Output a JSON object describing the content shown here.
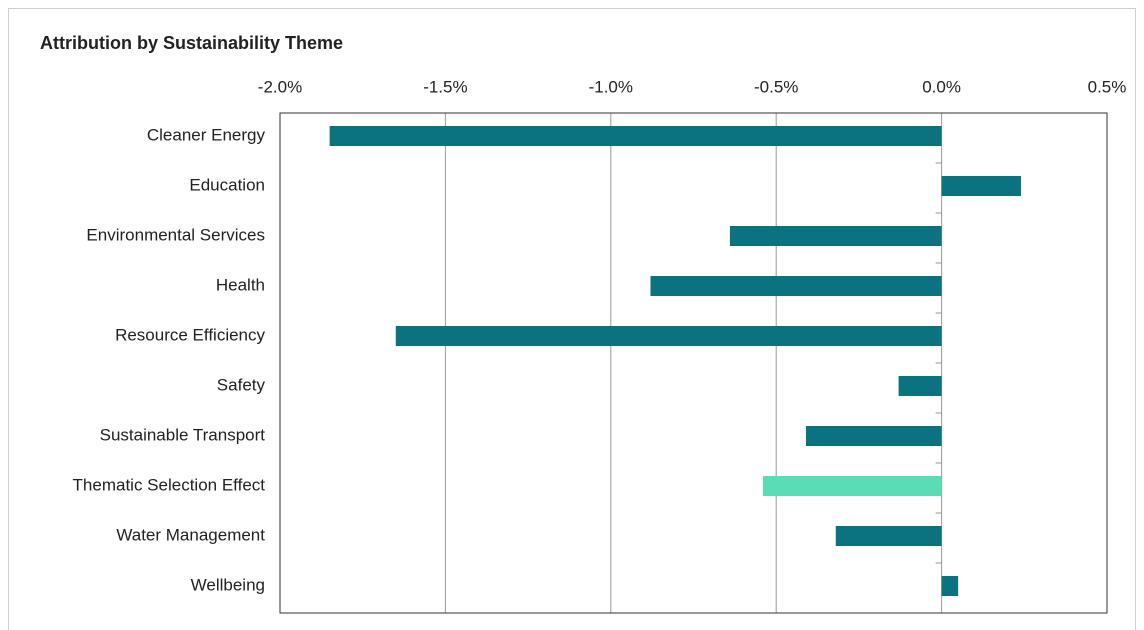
{
  "chart_data": {
    "type": "bar",
    "orientation": "horizontal",
    "title": "Attribution by Sustainability Theme",
    "categories": [
      "Cleaner Energy",
      "Education",
      "Environmental Services",
      "Health",
      "Resource Efficiency",
      "Safety",
      "Sustainable Transport",
      "Thematic Selection Effect",
      "Water Management",
      "Wellbeing"
    ],
    "values": [
      -1.85,
      0.24,
      -0.64,
      -0.88,
      -1.65,
      -0.13,
      -0.41,
      -0.54,
      -0.32,
      0.05
    ],
    "colors": [
      "#0b7380",
      "#0b7380",
      "#0b7380",
      "#0b7380",
      "#0b7380",
      "#0b7380",
      "#0b7380",
      "#5adcb6",
      "#0b7380",
      "#0b7380"
    ],
    "xlim": [
      -2.0,
      0.5
    ],
    "xticks": [
      {
        "value": -2.0,
        "label": "-2.0%"
      },
      {
        "value": -1.5,
        "label": "-1.5%"
      },
      {
        "value": -1.0,
        "label": "-1.0%"
      },
      {
        "value": -0.5,
        "label": "-0.5%"
      },
      {
        "value": 0.0,
        "label": "0.0%"
      },
      {
        "value": 0.5,
        "label": "0.5%"
      }
    ],
    "grid": true
  }
}
